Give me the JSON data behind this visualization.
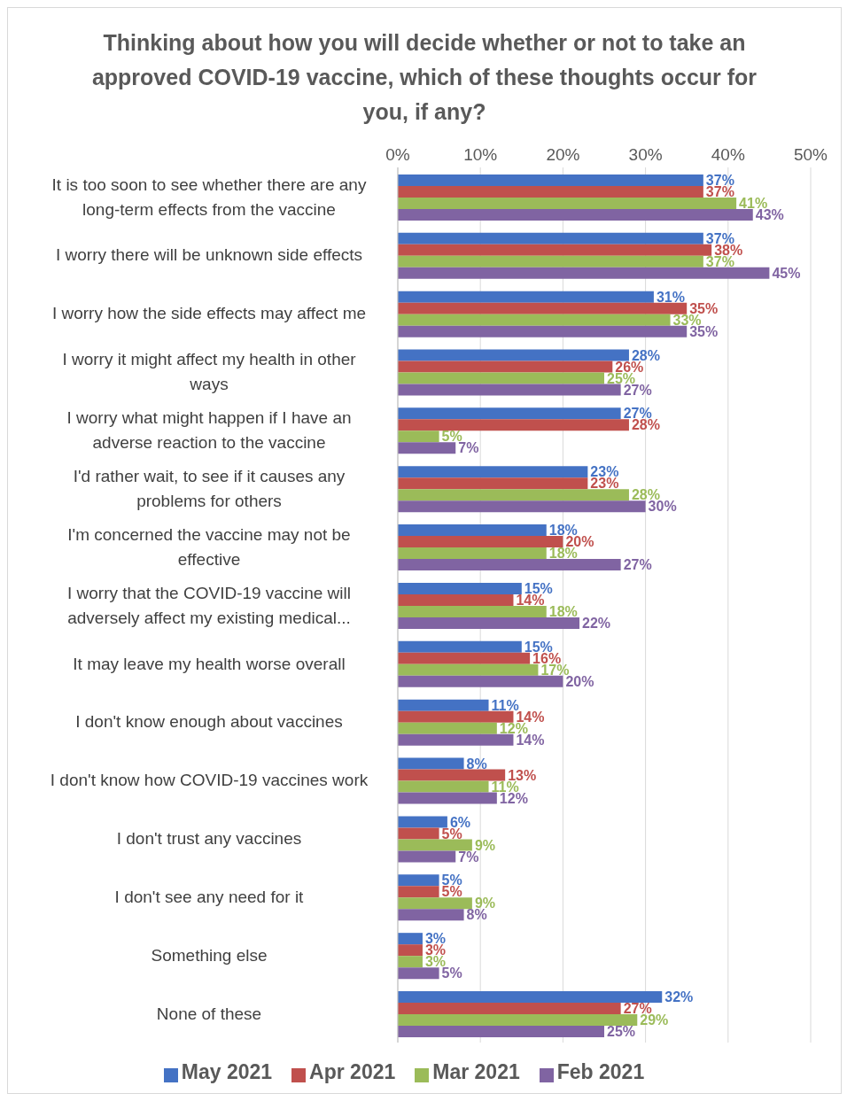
{
  "chart_data": {
    "type": "bar",
    "orientation": "horizontal",
    "title": "Thinking about how you will decide whether or not to take an approved COVID-19 vaccine, which of these thoughts occur for you, if any?",
    "categories": [
      "It is too soon to see whether there are any long-term effects from the vaccine",
      "I worry there will be unknown side effects",
      "I worry how the side effects may affect me",
      "I worry it might affect my health in other ways",
      "I worry what might happen if I have an adverse reaction to the vaccine",
      "I'd rather wait, to see if it causes any problems for others",
      "I'm concerned the vaccine may not be effective",
      "I worry that the COVID-19 vaccine will adversely affect my existing medical...",
      "It may leave my health worse overall",
      "I don't know enough about vaccines",
      "I don't know how COVID-19 vaccines work",
      "I don't trust any vaccines",
      "I don't see any need for it",
      "Something else",
      "None of these"
    ],
    "series": [
      {
        "name": "May 2021",
        "color": "#4472c4",
        "values": [
          37,
          37,
          31,
          28,
          27,
          23,
          18,
          15,
          15,
          11,
          8,
          6,
          5,
          3,
          32
        ],
        "value_labels": [
          "37%",
          "37%",
          "31%",
          "28%",
          "27%",
          "23%",
          "18%",
          "15%",
          "15%",
          "11%",
          "8%",
          "6%",
          "5%",
          "3%",
          "32%"
        ]
      },
      {
        "name": "Apr 2021",
        "color": "#c0504d",
        "values": [
          37,
          38,
          35,
          26,
          28,
          23,
          20,
          14,
          16,
          14,
          13,
          5,
          5,
          3,
          27
        ],
        "value_labels": [
          "37%",
          "38%",
          "35%",
          "26%",
          "28%",
          "23%",
          "20%",
          "14%",
          "16%",
          "14%",
          "13%",
          "5%",
          "5%",
          "3%",
          "27%"
        ]
      },
      {
        "name": "Mar 2021",
        "color": "#9bbb59",
        "values": [
          41,
          37,
          33,
          25,
          5,
          28,
          18,
          18,
          17,
          12,
          11,
          9,
          9,
          3,
          29
        ],
        "value_labels": [
          "41%",
          "37%",
          "33%",
          "25%",
          "5%",
          "28%",
          "18%",
          "18%",
          "17%",
          "12%",
          "11%",
          "9%",
          "9%",
          "3%",
          "29%"
        ]
      },
      {
        "name": "Feb 2021",
        "color": "#8064a2",
        "values": [
          43,
          45,
          35,
          27,
          7,
          30,
          27,
          22,
          20,
          14,
          12,
          7,
          8,
          5,
          25
        ],
        "value_labels": [
          "43%",
          "45%",
          "35%",
          "27%",
          "7%",
          "30%",
          "27%",
          "22%",
          "20%",
          "14%",
          "12%",
          "7%",
          "8%",
          "5%",
          "25%"
        ]
      }
    ],
    "xlim": [
      0,
      50
    ],
    "xticks": [
      {
        "value": 0,
        "label": "0%"
      },
      {
        "value": 10,
        "label": "10%"
      },
      {
        "value": 20,
        "label": "20%"
      },
      {
        "value": 30,
        "label": "30%"
      },
      {
        "value": 40,
        "label": "40%"
      },
      {
        "value": 50,
        "label": "50%"
      }
    ],
    "grid": "x",
    "legend": "bottom"
  }
}
